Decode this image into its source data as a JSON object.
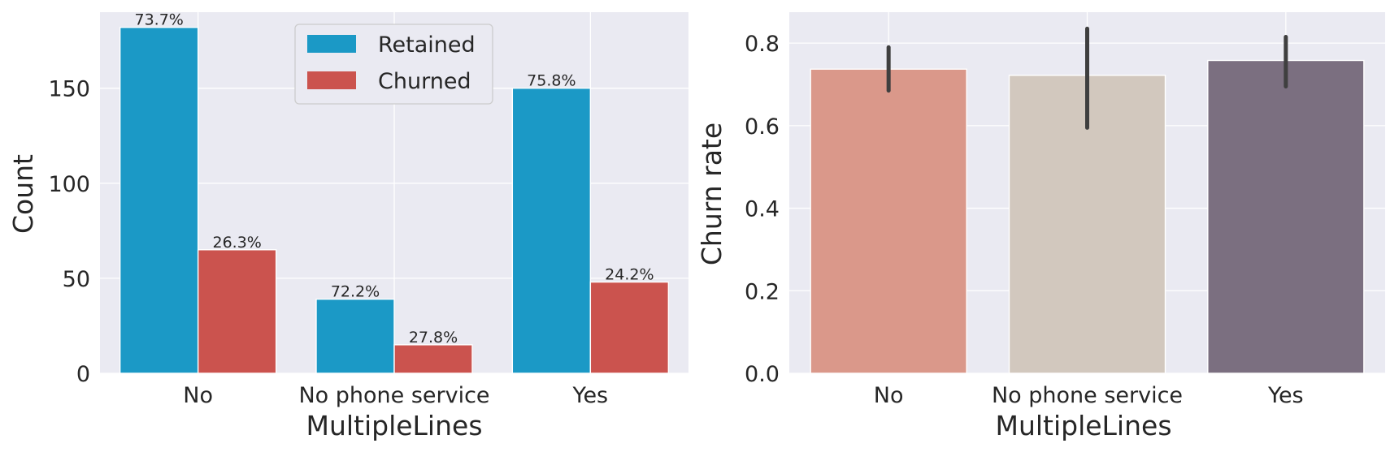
{
  "chart_data": [
    {
      "type": "bar",
      "xlabel": "MultipleLines",
      "ylabel": "Count",
      "categories": [
        "No",
        "No phone service",
        "Yes"
      ],
      "ylim": [
        0,
        190
      ],
      "yticks": [
        0,
        50,
        100,
        150
      ],
      "grid": true,
      "legend": "top-center",
      "series": [
        {
          "name": "Retained",
          "color": "#1b99c6",
          "values": [
            182,
            39,
            150
          ],
          "labels": [
            "73.7%",
            "72.2%",
            "75.8%"
          ]
        },
        {
          "name": "Churned",
          "color": "#cb534e",
          "values": [
            65,
            15,
            48
          ],
          "labels": [
            "26.3%",
            "27.8%",
            "24.2%"
          ]
        }
      ]
    },
    {
      "type": "bar",
      "xlabel": "MultipleLines",
      "ylabel": "Churn rate",
      "categories": [
        "No",
        "No phone service",
        "Yes"
      ],
      "ylim": [
        0,
        0.875
      ],
      "yticks": [
        "0.0",
        "0.2",
        "0.4",
        "0.6",
        "0.8"
      ],
      "grid": true,
      "values": [
        0.737,
        0.722,
        0.758
      ],
      "error_bars": [
        [
          0.685,
          0.79
        ],
        [
          0.595,
          0.835
        ],
        [
          0.695,
          0.815
        ]
      ],
      "colors": [
        "#da988a",
        "#d2c8be",
        "#7b6f80"
      ]
    }
  ]
}
